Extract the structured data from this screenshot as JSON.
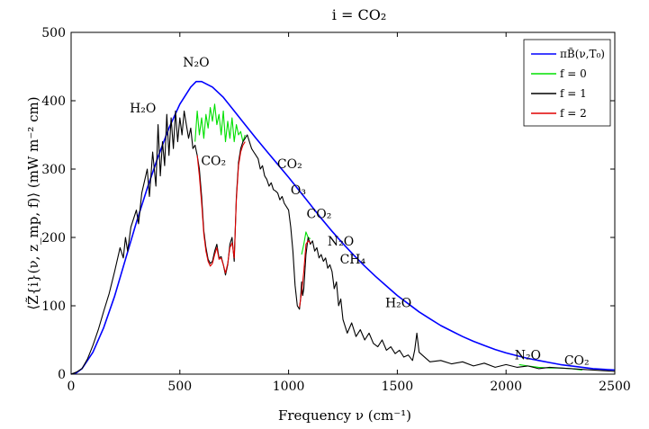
{
  "chart_data": {
    "type": "line",
    "title": "i = CO₂",
    "xlabel": "Frequency ν (cm⁻¹)",
    "ylabel": "⟨Z̃{i}(ν, z_mp, f)⟩ (mW m⁻² cm)",
    "xlim": [
      0,
      2500
    ],
    "ylim": [
      0,
      500
    ],
    "xticks": [
      "0",
      "500",
      "1000",
      "1500",
      "2000",
      "2500"
    ],
    "yticks": [
      "0",
      "100",
      "200",
      "300",
      "400",
      "500"
    ],
    "grid": false,
    "legend_position": "top-right",
    "legend": [
      {
        "label": "πB̃(ν,T₀)",
        "color": "#0000ff"
      },
      {
        "label": "f = 0",
        "color": "#00e000"
      },
      {
        "label": "f = 1",
        "color": "#000000"
      },
      {
        "label": "f = 2",
        "color": "#e00000"
      }
    ],
    "annotations": [
      {
        "text": "N₂O",
        "x": 575,
        "y": 450
      },
      {
        "text": "H₂O",
        "x": 330,
        "y": 383
      },
      {
        "text": "CO₂",
        "x": 655,
        "y": 306
      },
      {
        "text": "CO₂",
        "x": 1005,
        "y": 301
      },
      {
        "text": "O₃",
        "x": 1045,
        "y": 263
      },
      {
        "text": "CO₂",
        "x": 1140,
        "y": 228
      },
      {
        "text": "N₂O",
        "x": 1240,
        "y": 188
      },
      {
        "text": "CH₄",
        "x": 1295,
        "y": 162
      },
      {
        "text": "H₂O",
        "x": 1505,
        "y": 98
      },
      {
        "text": "N₂O",
        "x": 2100,
        "y": 22
      },
      {
        "text": "CO₂",
        "x": 2325,
        "y": 14
      }
    ],
    "series": [
      {
        "name": "πB̃(ν,T₀)",
        "color": "#0000ff",
        "x": [
          0,
          25,
          50,
          100,
          150,
          200,
          250,
          300,
          350,
          400,
          450,
          500,
          550,
          575,
          600,
          650,
          700,
          750,
          800,
          850,
          900,
          950,
          1000,
          1050,
          1100,
          1150,
          1200,
          1250,
          1300,
          1350,
          1400,
          1450,
          1500,
          1550,
          1600,
          1650,
          1700,
          1750,
          1800,
          1850,
          1900,
          1950,
          2000,
          2050,
          2100,
          2150,
          2200,
          2250,
          2300,
          2350,
          2400,
          2450,
          2500
        ],
        "y": [
          0,
          2,
          8,
          32,
          68,
          114,
          168,
          222,
          272,
          318,
          360,
          395,
          420,
          428,
          428,
          420,
          405,
          385,
          365,
          345,
          326,
          307,
          288,
          268,
          248,
          228,
          209,
          191,
          174,
          158,
          143,
          129,
          115,
          103,
          91,
          81,
          71,
          63,
          55,
          48,
          42,
          36,
          31,
          27,
          23,
          20,
          17,
          14,
          12,
          10,
          8,
          7,
          6
        ]
      },
      {
        "name": "f = 0",
        "color": "#00e000",
        "x": [
          570,
          580,
          590,
          600,
          610,
          620,
          630,
          640,
          650,
          660,
          670,
          680,
          690,
          700,
          710,
          720,
          730,
          740,
          750,
          760,
          770,
          780,
          790,
          800,
          1060,
          1070,
          1080,
          1090,
          1100,
          2060,
          2100,
          2150,
          2200,
          2250,
          2300,
          2350
        ],
        "y": [
          340,
          385,
          350,
          375,
          345,
          380,
          360,
          390,
          370,
          395,
          365,
          380,
          350,
          385,
          340,
          370,
          345,
          375,
          340,
          365,
          350,
          355,
          340,
          350,
          175,
          190,
          208,
          200,
          198,
          14,
          12,
          10,
          9,
          9,
          8,
          6
        ]
      },
      {
        "name": "f = 1",
        "color": "#000000",
        "x": [
          0,
          25,
          50,
          75,
          100,
          125,
          150,
          175,
          200,
          225,
          240,
          250,
          260,
          275,
          300,
          310,
          325,
          350,
          360,
          375,
          390,
          400,
          410,
          420,
          430,
          440,
          450,
          460,
          470,
          480,
          490,
          500,
          510,
          520,
          530,
          540,
          550,
          560,
          570,
          580,
          590,
          600,
          610,
          620,
          630,
          640,
          650,
          660,
          670,
          680,
          690,
          700,
          710,
          720,
          730,
          740,
          750,
          760,
          770,
          780,
          790,
          800,
          810,
          820,
          830,
          840,
          850,
          860,
          870,
          880,
          890,
          900,
          910,
          920,
          930,
          940,
          950,
          960,
          970,
          980,
          990,
          1000,
          1010,
          1020,
          1030,
          1040,
          1050,
          1055,
          1060,
          1065,
          1070,
          1080,
          1090,
          1100,
          1110,
          1120,
          1130,
          1140,
          1150,
          1160,
          1170,
          1180,
          1190,
          1200,
          1210,
          1220,
          1230,
          1240,
          1250,
          1270,
          1290,
          1310,
          1330,
          1350,
          1370,
          1390,
          1410,
          1430,
          1450,
          1470,
          1490,
          1510,
          1530,
          1550,
          1570,
          1580,
          1590,
          1600,
          1650,
          1700,
          1750,
          1800,
          1850,
          1900,
          1950,
          2000,
          2050,
          2100,
          2150,
          2200,
          2250,
          2300,
          2350,
          2400,
          2450,
          2500
        ],
        "y": [
          0,
          3,
          8,
          22,
          42,
          65,
          92,
          118,
          150,
          185,
          170,
          200,
          180,
          215,
          240,
          220,
          265,
          300,
          260,
          325,
          275,
          365,
          290,
          340,
          305,
          380,
          320,
          375,
          330,
          385,
          340,
          375,
          350,
          385,
          365,
          345,
          360,
          330,
          335,
          320,
          300,
          260,
          210,
          185,
          168,
          162,
          165,
          180,
          190,
          170,
          172,
          160,
          145,
          160,
          190,
          200,
          165,
          260,
          310,
          330,
          340,
          345,
          350,
          340,
          330,
          325,
          320,
          315,
          300,
          305,
          290,
          285,
          275,
          280,
          270,
          268,
          265,
          255,
          260,
          250,
          245,
          240,
          215,
          180,
          130,
          100,
          95,
          110,
          135,
          115,
          125,
          175,
          200,
          190,
          195,
          180,
          185,
          170,
          175,
          165,
          170,
          155,
          160,
          150,
          125,
          135,
          100,
          110,
          80,
          60,
          75,
          55,
          65,
          50,
          60,
          45,
          40,
          50,
          35,
          40,
          30,
          35,
          25,
          28,
          20,
          35,
          60,
          32,
          18,
          20,
          15,
          18,
          12,
          16,
          10,
          14,
          10,
          12,
          8,
          10,
          9,
          8,
          7,
          6,
          5,
          4
        ]
      },
      {
        "name": "f = 2",
        "color": "#e00000",
        "x": [
          580,
          590,
          600,
          610,
          620,
          630,
          640,
          650,
          660,
          670,
          680,
          690,
          700,
          710,
          720,
          730,
          740,
          750,
          760,
          770,
          780,
          790,
          800,
          1050,
          1060,
          1070,
          1080,
          1090,
          1100
        ],
        "y": [
          320,
          290,
          250,
          205,
          180,
          165,
          158,
          162,
          175,
          185,
          168,
          170,
          160,
          148,
          162,
          185,
          192,
          170,
          255,
          305,
          325,
          335,
          340,
          98,
          120,
          150,
          190,
          195,
          192
        ]
      }
    ]
  }
}
